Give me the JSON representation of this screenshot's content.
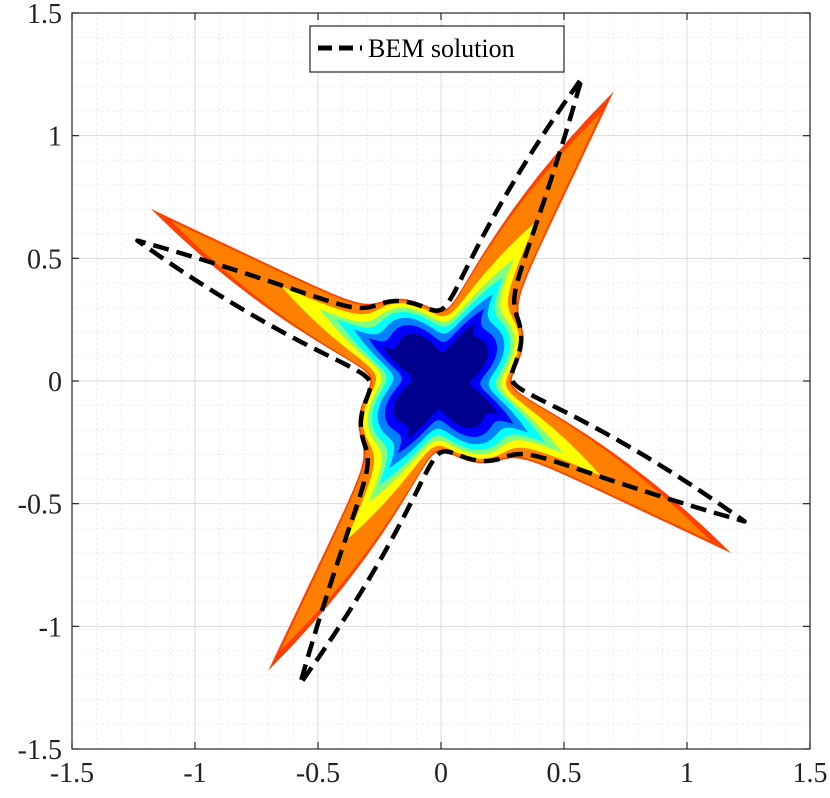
{
  "chart_data": {
    "type": "line",
    "title": "",
    "xlabel": "",
    "ylabel": "",
    "xlim": [
      -1.5,
      1.5
    ],
    "ylim": [
      -1.5,
      1.5
    ],
    "grid": "on (major and minor)",
    "legend_placement": "top-center",
    "xticks": [
      -1.5,
      -1,
      -0.5,
      0,
      0.5,
      1,
      1.5
    ],
    "yticks": [
      -1.5,
      -1,
      -0.5,
      0,
      0.5,
      1,
      1.5
    ],
    "xtick_labels": [
      "-1.5",
      "-1",
      "-0.5",
      "0",
      "0.5",
      "1",
      "1.5"
    ],
    "ytick_labels": [
      "-1.5",
      "-1",
      "-0.5",
      "0",
      "0.5",
      "1",
      "1.5"
    ],
    "filled_field": {
      "description": "star-shaped region colored by field magnitude (jet colormap)",
      "colormap": [
        "#00008f",
        "#0000ff",
        "#0080ff",
        "#00ffff",
        "#80ff80",
        "#ffff00",
        "#ff8000",
        "#ff4000"
      ],
      "arm_tips": [
        [
          0.63,
          1.22
        ],
        [
          -1.22,
          0.63
        ],
        [
          -0.63,
          -1.22
        ],
        [
          1.22,
          -0.63
        ]
      ],
      "core_radius": 0.34
    },
    "series": [
      {
        "name": "BEM solution",
        "style": "dashed",
        "color": "#000000",
        "arm_tips": [
          [
            0.56,
            1.24
          ],
          [
            -1.27,
            0.5
          ],
          [
            -0.53,
            -1.25
          ],
          [
            1.29,
            -0.54
          ]
        ]
      }
    ]
  },
  "legend": {
    "entries": [
      "BEM solution"
    ]
  }
}
